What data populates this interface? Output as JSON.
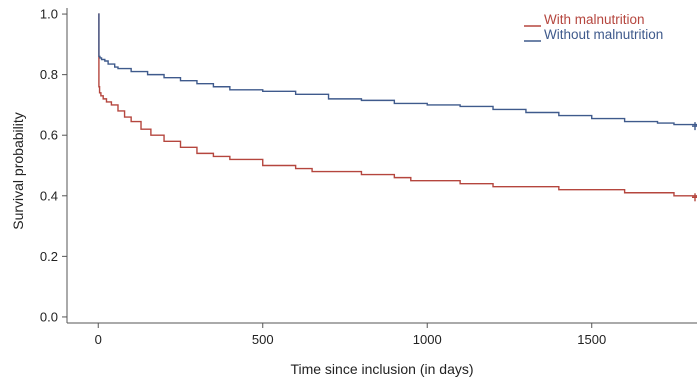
{
  "chart_data": {
    "type": "line",
    "title": "",
    "xlabel": "Time since inclusion (in days)",
    "ylabel": "Survival probability",
    "xlim": [
      -95,
      1820
    ],
    "ylim": [
      -0.02,
      1.02
    ],
    "xticks": [
      0,
      500,
      1000,
      1500
    ],
    "xtick_labels": [
      "0",
      "500",
      "1000",
      "1500"
    ],
    "yticks": [
      0.0,
      0.2,
      0.4,
      0.6,
      0.8,
      1.0
    ],
    "ytick_labels": [
      "0.0",
      "0.2",
      "0.4",
      "0.6",
      "0.8",
      "1.0"
    ],
    "grid": false,
    "legend_position": "top-right",
    "step": true,
    "series": [
      {
        "name": "With malnutrition",
        "color": "#b5463e",
        "x": [
          0,
          2,
          4,
          8,
          15,
          25,
          40,
          60,
          80,
          100,
          130,
          160,
          200,
          250,
          300,
          350,
          400,
          500,
          600,
          650,
          700,
          800,
          900,
          950,
          1000,
          1100,
          1200,
          1300,
          1400,
          1500,
          1600,
          1700,
          1750,
          1820
        ],
        "y": [
          1.0,
          0.76,
          0.74,
          0.73,
          0.72,
          0.71,
          0.7,
          0.68,
          0.66,
          0.645,
          0.62,
          0.6,
          0.58,
          0.56,
          0.54,
          0.53,
          0.52,
          0.5,
          0.49,
          0.48,
          0.48,
          0.47,
          0.46,
          0.45,
          0.45,
          0.44,
          0.43,
          0.43,
          0.42,
          0.42,
          0.41,
          0.41,
          0.4,
          0.395
        ]
      },
      {
        "name": "Without malnutrition",
        "color": "#3f5a8c",
        "x": [
          0,
          2,
          5,
          10,
          20,
          30,
          50,
          60,
          100,
          150,
          200,
          250,
          300,
          350,
          400,
          500,
          600,
          700,
          800,
          900,
          1000,
          1100,
          1200,
          1300,
          1400,
          1500,
          1600,
          1700,
          1750,
          1820
        ],
        "y": [
          1.0,
          0.86,
          0.855,
          0.85,
          0.845,
          0.835,
          0.825,
          0.82,
          0.81,
          0.8,
          0.79,
          0.78,
          0.77,
          0.76,
          0.75,
          0.745,
          0.735,
          0.72,
          0.715,
          0.705,
          0.7,
          0.695,
          0.685,
          0.675,
          0.665,
          0.655,
          0.645,
          0.64,
          0.635,
          0.63
        ]
      }
    ]
  }
}
